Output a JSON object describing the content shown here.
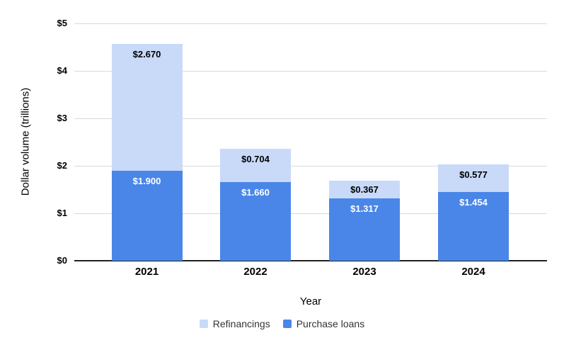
{
  "chart_data": {
    "type": "bar",
    "stacked": true,
    "title": "",
    "xlabel": "Year",
    "ylabel": "Dollar volume (trillions)",
    "categories": [
      "2021",
      "2022",
      "2023",
      "2024"
    ],
    "series": [
      {
        "name": "Refinancings",
        "color": "#c9daf8",
        "label_color": "#000000",
        "values": [
          2.67,
          0.704,
          0.367,
          0.577
        ],
        "labels": [
          "$2.670",
          "$0.704",
          "$0.367",
          "$0.577"
        ]
      },
      {
        "name": "Purchase loans",
        "color": "#4a86e8",
        "label_color": "#ffffff",
        "values": [
          1.9,
          1.66,
          1.317,
          1.454
        ],
        "labels": [
          "$1.900",
          "$1.660",
          "$1.317",
          "$1.454"
        ]
      }
    ],
    "stack_order_bottom_to_top": [
      "Purchase loans",
      "Refinancings"
    ],
    "ylim": [
      0,
      5
    ],
    "y_ticks": [
      {
        "value": 0,
        "label": "$0"
      },
      {
        "value": 1,
        "label": "$1"
      },
      {
        "value": 2,
        "label": "$2"
      },
      {
        "value": 3,
        "label": "$3"
      },
      {
        "value": 4,
        "label": "$4"
      },
      {
        "value": 5,
        "label": "$5"
      }
    ],
    "grid": true,
    "legend_position": "bottom",
    "background_color": "#ffffff",
    "gridline_color": "#d9d9d9",
    "axis_line_color": "#212121"
  }
}
